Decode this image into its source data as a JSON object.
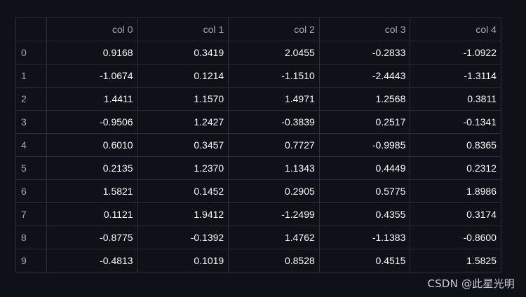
{
  "table": {
    "corner": "",
    "columns": [
      "col 0",
      "col 1",
      "col 2",
      "col 3",
      "col 4"
    ],
    "rows": [
      {
        "index": "0",
        "cells": [
          "0.9168",
          "0.3419",
          "2.0455",
          "-0.2833",
          "-1.0922"
        ]
      },
      {
        "index": "1",
        "cells": [
          "-1.0674",
          "0.1214",
          "-1.1510",
          "-2.4443",
          "-1.3114"
        ]
      },
      {
        "index": "2",
        "cells": [
          "1.4411",
          "1.1570",
          "1.4971",
          "1.2568",
          "0.3811"
        ]
      },
      {
        "index": "3",
        "cells": [
          "-0.9506",
          "1.2427",
          "-0.3839",
          "0.2517",
          "-0.1341"
        ]
      },
      {
        "index": "4",
        "cells": [
          "0.6010",
          "0.3457",
          "0.7727",
          "-0.9985",
          "0.8365"
        ]
      },
      {
        "index": "5",
        "cells": [
          "0.2135",
          "1.2370",
          "1.1343",
          "0.4449",
          "0.2312"
        ]
      },
      {
        "index": "6",
        "cells": [
          "1.5821",
          "0.1452",
          "0.2905",
          "0.5775",
          "1.8986"
        ]
      },
      {
        "index": "7",
        "cells": [
          "0.1121",
          "1.9412",
          "-1.2499",
          "0.4355",
          "0.3174"
        ]
      },
      {
        "index": "8",
        "cells": [
          "-0.8775",
          "-0.1392",
          "1.4762",
          "-1.1383",
          "-0.8600"
        ]
      },
      {
        "index": "9",
        "cells": [
          "-0.4813",
          "0.1019",
          "0.8528",
          "0.4515",
          "1.5825"
        ]
      }
    ]
  },
  "watermark": "CSDN @此星光明"
}
